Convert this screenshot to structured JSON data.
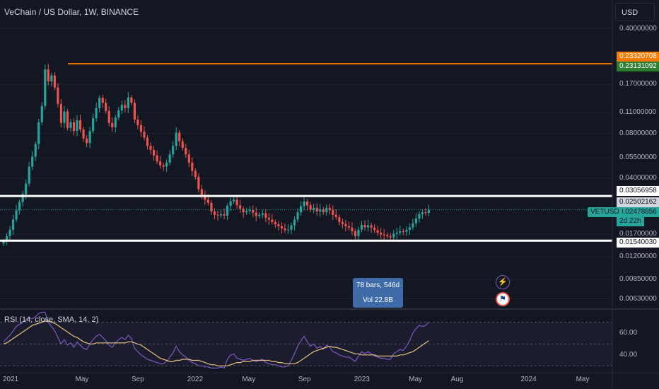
{
  "header": {
    "title": "VeChain / US Dollar, 1W, BINANCE",
    "currency_button": "USD"
  },
  "price_axis": {
    "ticks": [
      "0.40000000",
      "0.17000000",
      "0.11000000",
      "0.08000000",
      "0.05500000",
      "0.04000000",
      "0.01700000",
      "0.01200000",
      "0.00850000",
      "0.00630000"
    ]
  },
  "levels": {
    "orange_line": {
      "value": 0.2332,
      "label": "0.23320708",
      "color": "#f57c00"
    },
    "green_tag": {
      "label": "0.23131092",
      "color": "#2e7d32"
    },
    "white_top": {
      "value": 0.0306,
      "label": "0.03056958"
    },
    "current_gray": {
      "label": "0.02502162"
    },
    "white_bottom": {
      "value": 0.0154,
      "label": "0.01540030"
    }
  },
  "current_price": {
    "ticker": "VETUSD",
    "value_label": "0.02478856",
    "countdown": "2d 22h",
    "color": "#26a69a"
  },
  "time_axis": {
    "labels": [
      "2021",
      "May",
      "Sep",
      "2022",
      "May",
      "Sep",
      "2023",
      "May",
      "Aug",
      "2024",
      "May"
    ]
  },
  "rsi": {
    "legend": "RSI (14, close, SMA, 14, 2)",
    "ticks": [
      "60.00",
      "40.00"
    ],
    "line_color": "#7e57c2",
    "sma_color": "#e5c07b"
  },
  "measure_tool": {
    "line1": "78 bars, 546d",
    "line2": "Vol 22.8B"
  },
  "colors": {
    "up": "#26a69a",
    "down": "#ef5350",
    "background": "#131722"
  },
  "chart_data": {
    "type": "candlestick",
    "title": "VeChain / US Dollar, 1W, BINANCE",
    "y_scale": "log",
    "ylim": [
      0.0055,
      0.5
    ],
    "x_range": [
      "2021-01-01",
      "2024-07-01"
    ],
    "closes": [
      0.0152,
      0.0165,
      0.0182,
      0.0213,
      0.0245,
      0.0279,
      0.0315,
      0.037,
      0.048,
      0.056,
      0.068,
      0.095,
      0.122,
      0.214,
      0.178,
      0.195,
      0.162,
      0.126,
      0.094,
      0.112,
      0.087,
      0.095,
      0.083,
      0.098,
      0.085,
      0.074,
      0.069,
      0.083,
      0.101,
      0.118,
      0.138,
      0.128,
      0.113,
      0.094,
      0.088,
      0.102,
      0.114,
      0.124,
      0.118,
      0.139,
      0.128,
      0.099,
      0.091,
      0.082,
      0.075,
      0.066,
      0.062,
      0.057,
      0.052,
      0.049,
      0.048,
      0.051,
      0.058,
      0.066,
      0.081,
      0.071,
      0.064,
      0.058,
      0.051,
      0.045,
      0.041,
      0.034,
      0.031,
      0.0289,
      0.0275,
      0.0241,
      0.0229,
      0.0227,
      0.0231,
      0.0226,
      0.0263,
      0.0282,
      0.0289,
      0.0265,
      0.0251,
      0.0238,
      0.0243,
      0.0246,
      0.0237,
      0.0225,
      0.0229,
      0.0234,
      0.0219,
      0.0213,
      0.0205,
      0.0198,
      0.0192,
      0.0186,
      0.0181,
      0.0182,
      0.0195,
      0.0213,
      0.0238,
      0.0262,
      0.0281,
      0.0265,
      0.0248,
      0.0255,
      0.0241,
      0.0249,
      0.0238,
      0.0255,
      0.0246,
      0.0229,
      0.0221,
      0.0205,
      0.0199,
      0.0192,
      0.0188,
      0.0178,
      0.0165,
      0.0182,
      0.0196,
      0.0189,
      0.0195,
      0.0188,
      0.0181,
      0.0174,
      0.0169,
      0.0168,
      0.0165,
      0.0162,
      0.0171,
      0.0174,
      0.0178,
      0.0177,
      0.0182,
      0.0189,
      0.0201,
      0.0216,
      0.0232,
      0.0238,
      0.0236,
      0.0248
    ],
    "rsi": [
      52,
      55,
      58,
      62,
      66,
      68,
      70,
      72,
      74,
      73,
      75,
      78,
      80,
      82,
      70,
      66,
      62,
      56,
      50,
      54,
      49,
      51,
      47,
      52,
      49,
      46,
      45,
      50,
      54,
      57,
      59,
      56,
      53,
      49,
      47,
      51,
      54,
      56,
      54,
      58,
      55,
      46,
      43,
      40,
      38,
      36,
      35,
      34,
      33,
      32,
      32,
      34,
      38,
      42,
      48,
      43,
      40,
      38,
      35,
      33,
      32,
      30,
      30,
      29,
      29,
      28,
      28,
      28,
      29,
      28,
      36,
      40,
      41,
      37,
      36,
      35,
      36,
      37,
      35,
      34,
      35,
      36,
      33,
      32,
      31,
      31,
      30,
      29,
      29,
      30,
      35,
      41,
      48,
      53,
      57,
      52,
      48,
      50,
      46,
      48,
      45,
      49,
      47,
      43,
      42,
      40,
      39,
      38,
      38,
      36,
      34,
      39,
      43,
      41,
      43,
      41,
      39,
      38,
      37,
      37,
      36,
      36,
      41,
      43,
      45,
      44,
      48,
      53,
      60,
      64,
      67,
      66,
      67,
      70
    ],
    "rsi_sma": [
      50,
      51,
      53,
      55,
      57,
      59,
      61,
      63,
      65,
      67,
      68,
      69,
      70,
      71,
      71,
      70,
      69,
      67,
      65,
      63,
      61,
      59,
      57,
      56,
      54,
      52,
      51,
      50,
      50,
      51,
      51,
      51,
      51,
      51,
      51,
      51,
      51,
      51,
      51,
      52,
      52,
      51,
      50,
      49,
      47,
      45,
      43,
      41,
      39,
      37,
      36,
      35,
      34,
      34,
      35,
      35,
      36,
      36,
      36,
      35,
      35,
      35,
      34,
      33,
      32,
      31,
      31,
      30,
      30,
      30,
      30,
      31,
      32,
      33,
      33,
      34,
      34,
      34,
      35,
      35,
      35,
      35,
      35,
      35,
      34,
      34,
      33,
      33,
      32,
      32,
      32,
      32,
      33,
      35,
      37,
      39,
      41,
      43,
      44,
      45,
      46,
      47,
      48,
      47,
      47,
      46,
      45,
      44,
      43,
      42,
      41,
      41,
      40,
      40,
      40,
      40,
      40,
      39,
      39,
      39,
      39,
      39,
      39,
      39,
      40,
      40,
      41,
      42,
      43,
      45,
      47,
      49,
      51,
      53
    ]
  }
}
